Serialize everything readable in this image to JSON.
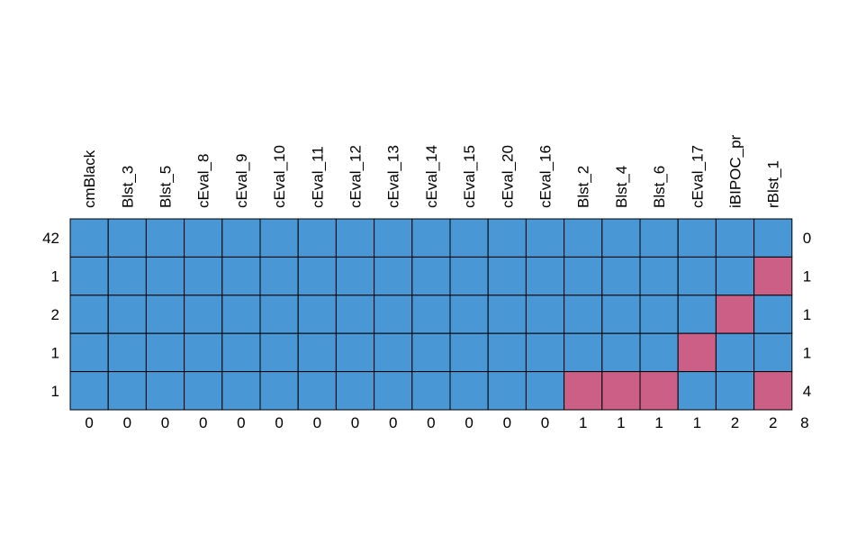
{
  "chart_data": {
    "type": "heatmap",
    "title": "",
    "columns": [
      "cmBlack",
      "Blst_3",
      "Blst_5",
      "cEval_8",
      "cEval_9",
      "cEval_10",
      "cEval_11",
      "cEval_12",
      "cEval_13",
      "cEval_14",
      "cEval_15",
      "cEval_20",
      "cEval_16",
      "Blst_2",
      "Blst_4",
      "Blst_6",
      "cEval_17",
      "iBIPOC_pr",
      "rBlst_1"
    ],
    "row_counts": [
      "42",
      "1",
      "2",
      "1",
      "1"
    ],
    "row_missing_totals": [
      "0",
      "1",
      "1",
      "1",
      "4"
    ],
    "column_missing_totals": [
      "0",
      "0",
      "0",
      "0",
      "0",
      "0",
      "0",
      "0",
      "0",
      "0",
      "0",
      "0",
      "0",
      "1",
      "1",
      "1",
      "1",
      "2",
      "2"
    ],
    "total_missing": "8",
    "matrix": [
      [
        0,
        0,
        0,
        0,
        0,
        0,
        0,
        0,
        0,
        0,
        0,
        0,
        0,
        0,
        0,
        0,
        0,
        0,
        0
      ],
      [
        0,
        0,
        0,
        0,
        0,
        0,
        0,
        0,
        0,
        0,
        0,
        0,
        0,
        0,
        0,
        0,
        0,
        0,
        1
      ],
      [
        0,
        0,
        0,
        0,
        0,
        0,
        0,
        0,
        0,
        0,
        0,
        0,
        0,
        0,
        0,
        0,
        0,
        1,
        0
      ],
      [
        0,
        0,
        0,
        0,
        0,
        0,
        0,
        0,
        0,
        0,
        0,
        0,
        0,
        0,
        0,
        0,
        1,
        0,
        0
      ],
      [
        0,
        0,
        0,
        0,
        0,
        0,
        0,
        0,
        0,
        0,
        0,
        0,
        0,
        1,
        1,
        1,
        0,
        0,
        1
      ]
    ],
    "colors": {
      "observed": "#4a97d5",
      "missing": "#cc5f86",
      "border": "#000000"
    }
  }
}
